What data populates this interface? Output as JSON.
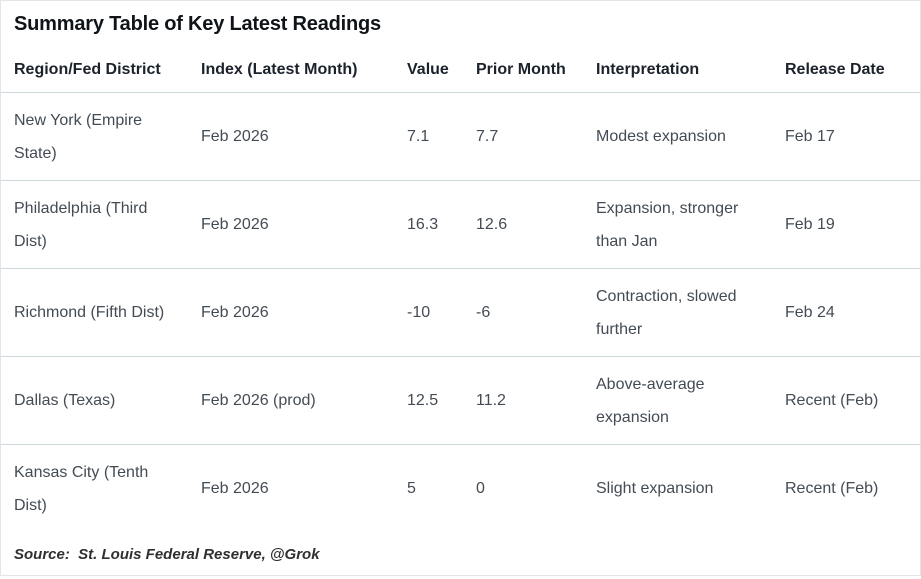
{
  "page": {
    "title": "Summary Table of Key Latest Readings",
    "source_note": "Source:  St. Louis Federal Reserve, @Grok"
  },
  "table": {
    "columns": [
      "Region/Fed District",
      "Index (Latest Month)",
      "Value",
      "Prior Month",
      "Interpretation",
      "Release Date"
    ],
    "rows": [
      {
        "region": "New York (Empire State)",
        "index_month": "Feb 2026",
        "value": "7.1",
        "prior": "7.7",
        "interpretation": "Modest expansion",
        "release": "Feb 17"
      },
      {
        "region": "Philadelphia (Third Dist)",
        "index_month": "Feb 2026",
        "value": "16.3",
        "prior": "12.6",
        "interpretation": "Expansion, stronger than Jan",
        "release": "Feb 19"
      },
      {
        "region": "Richmond (Fifth Dist)",
        "index_month": "Feb 2026",
        "value": "-10",
        "prior": "-6",
        "interpretation": "Contraction, slowed further",
        "release": "Feb 24"
      },
      {
        "region": "Dallas (Texas)",
        "index_month": "Feb 2026 (prod)",
        "value": "12.5",
        "prior": "11.2",
        "interpretation": "Above-average expansion",
        "release": "Recent (Feb)"
      },
      {
        "region": "Kansas City (Tenth Dist)",
        "index_month": "Feb 2026",
        "value": "5",
        "prior": "0",
        "interpretation": "Slight expansion",
        "release": "Recent (Feb)"
      }
    ]
  },
  "colors": {
    "title_text": "#0f1419",
    "header_text": "#1b222b",
    "body_text": "#434b54",
    "divider": "#cfd9de",
    "background": "#ffffff"
  }
}
